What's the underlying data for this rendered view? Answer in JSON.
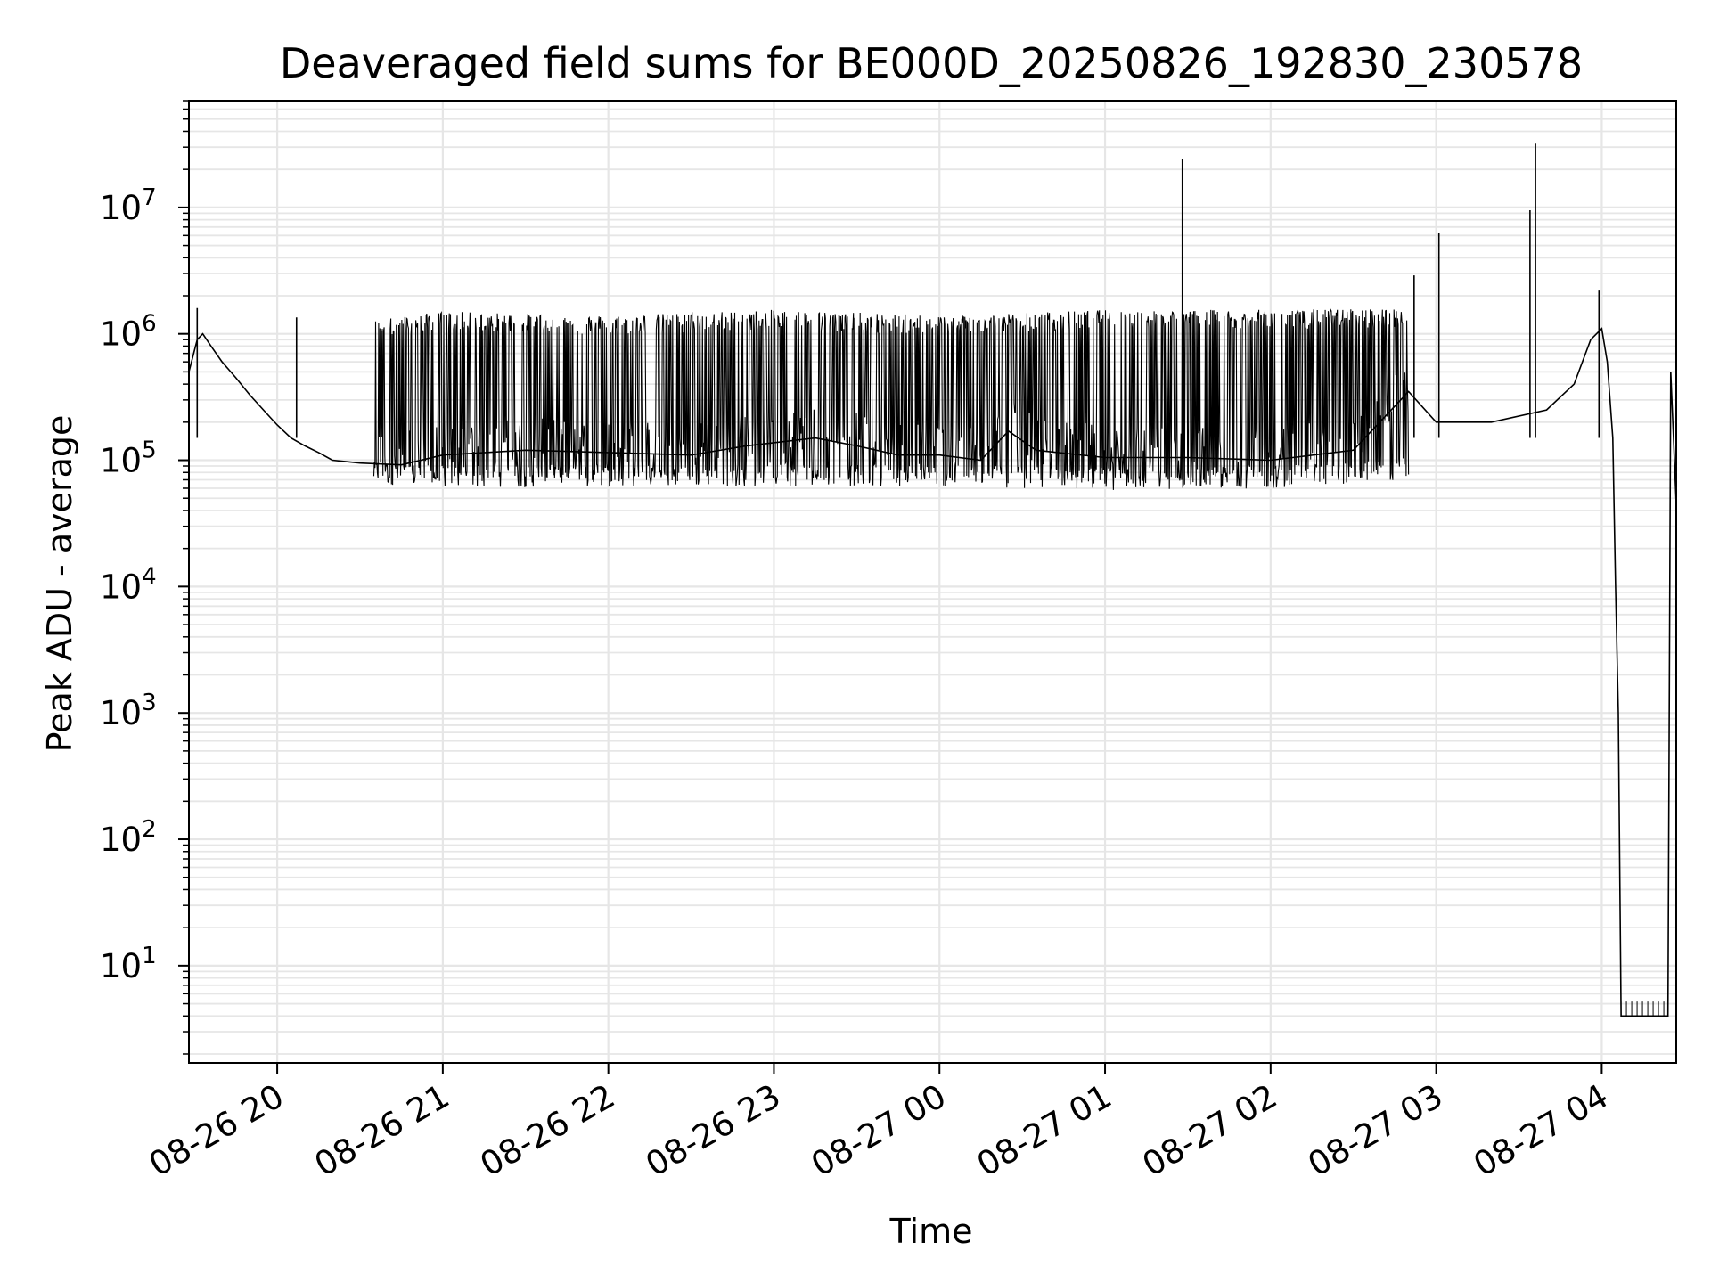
{
  "chart_data": {
    "type": "line",
    "title": "Deaveraged field sums for BE000D_20250826_192830_230578",
    "xlabel": "Time",
    "ylabel": "Peak ADU - average",
    "x_scale": "time",
    "y_scale": "log",
    "xlim": [
      "2025-08-26 19:28",
      "2025-08-27 04:27"
    ],
    "ylim": [
      1.7,
      70000000
    ],
    "grid": true,
    "legend": "none",
    "colors": {
      "line": "#000000",
      "grid": "#e6e6e6",
      "axes": "#000000"
    },
    "x_ticks": [
      {
        "label": "08-26 20",
        "t": "2025-08-26 20:00"
      },
      {
        "label": "08-26 21",
        "t": "2025-08-26 21:00"
      },
      {
        "label": "08-26 22",
        "t": "2025-08-26 22:00"
      },
      {
        "label": "08-26 23",
        "t": "2025-08-26 23:00"
      },
      {
        "label": "08-27 00",
        "t": "2025-08-27 00:00"
      },
      {
        "label": "08-27 01",
        "t": "2025-08-27 01:00"
      },
      {
        "label": "08-27 02",
        "t": "2025-08-27 02:00"
      },
      {
        "label": "08-27 03",
        "t": "2025-08-27 03:00"
      },
      {
        "label": "08-27 04",
        "t": "2025-08-27 04:00"
      }
    ],
    "y_ticks": [
      {
        "base": "10",
        "exp": "1",
        "value": 10
      },
      {
        "base": "10",
        "exp": "2",
        "value": 100
      },
      {
        "base": "10",
        "exp": "3",
        "value": 1000
      },
      {
        "base": "10",
        "exp": "4",
        "value": 10000
      },
      {
        "base": "10",
        "exp": "5",
        "value": 100000
      },
      {
        "base": "10",
        "exp": "6",
        "value": 1000000
      },
      {
        "base": "10",
        "exp": "7",
        "value": 10000000
      }
    ],
    "series": [
      {
        "values": [
          [
            "2025-08-26 19:28",
            500000
          ],
          [
            "2025-08-26 19:31",
            900000
          ],
          [
            "2025-08-26 19:33",
            1000000
          ],
          [
            "2025-08-26 19:36",
            800000
          ],
          [
            "2025-08-26 19:40",
            600000
          ],
          [
            "2025-08-26 19:45",
            450000
          ],
          [
            "2025-08-26 19:50",
            330000
          ],
          [
            "2025-08-26 19:55",
            250000
          ],
          [
            "2025-08-26 20:00",
            190000
          ],
          [
            "2025-08-26 20:05",
            150000
          ],
          [
            "2025-08-26 20:10",
            130000
          ],
          [
            "2025-08-26 20:15",
            115000
          ],
          [
            "2025-08-26 20:20",
            100000
          ],
          [
            "2025-08-26 20:30",
            95000
          ],
          [
            "2025-08-26 20:45",
            92000
          ],
          [
            "2025-08-26 21:00",
            110000
          ],
          [
            "2025-08-26 21:30",
            120000
          ],
          [
            "2025-08-26 22:00",
            115000
          ],
          [
            "2025-08-26 22:30",
            110000
          ],
          [
            "2025-08-26 22:50",
            130000
          ],
          [
            "2025-08-26 23:15",
            150000
          ],
          [
            "2025-08-26 23:30",
            130000
          ],
          [
            "2025-08-26 23:45",
            110000
          ],
          [
            "2025-08-27 00:00",
            110000
          ],
          [
            "2025-08-27 00:15",
            100000
          ],
          [
            "2025-08-27 00:25",
            170000
          ],
          [
            "2025-08-27 00:35",
            120000
          ],
          [
            "2025-08-27 01:00",
            105000
          ],
          [
            "2025-08-27 01:30",
            105000
          ],
          [
            "2025-08-27 02:00",
            100000
          ],
          [
            "2025-08-27 02:30",
            120000
          ],
          [
            "2025-08-27 02:50",
            350000
          ],
          [
            "2025-08-27 03:00",
            200000
          ],
          [
            "2025-08-27 03:20",
            200000
          ],
          [
            "2025-08-27 03:40",
            250000
          ],
          [
            "2025-08-27 03:50",
            400000
          ],
          [
            "2025-08-27 03:56",
            900000
          ],
          [
            "2025-08-27 04:00",
            1100000
          ],
          [
            "2025-08-27 04:02",
            600000
          ],
          [
            "2025-08-27 04:04",
            150000
          ],
          [
            "2025-08-27 04:05",
            10000
          ],
          [
            "2025-08-27 04:06",
            1000
          ],
          [
            "2025-08-27 04:07",
            4
          ],
          [
            "2025-08-27 04:24",
            4
          ],
          [
            "2025-08-27 04:25",
            500000
          ],
          [
            "2025-08-27 04:27",
            45000
          ]
        ],
        "band_upper": [
          [
            "2025-08-26 20:35",
            1300000
          ],
          [
            "2025-08-26 21:00",
            1500000
          ],
          [
            "2025-08-26 22:00",
            1400000
          ],
          [
            "2025-08-26 23:00",
            1550000
          ],
          [
            "2025-08-27 00:00",
            1400000
          ],
          [
            "2025-08-27 01:00",
            1550000
          ],
          [
            "2025-08-27 02:00",
            1550000
          ],
          [
            "2025-08-27 02:50",
            1600000
          ]
        ],
        "band_lower": [
          [
            "2025-08-26 20:35",
            65000
          ],
          [
            "2025-08-26 21:00",
            60000
          ],
          [
            "2025-08-26 22:00",
            62000
          ],
          [
            "2025-08-26 23:00",
            62000
          ],
          [
            "2025-08-27 00:00",
            62000
          ],
          [
            "2025-08-27 01:00",
            58000
          ],
          [
            "2025-08-27 02:00",
            60000
          ],
          [
            "2025-08-27 02:50",
            70000
          ]
        ],
        "spikes": [
          [
            "2025-08-26 19:31",
            1600000
          ],
          [
            "2025-08-26 20:07",
            1350000
          ],
          [
            "2025-08-27 01:28",
            24000000
          ],
          [
            "2025-08-27 02:52",
            2900000
          ],
          [
            "2025-08-27 03:01",
            6300000
          ],
          [
            "2025-08-27 03:34",
            9500000
          ],
          [
            "2025-08-27 03:36",
            32000000
          ],
          [
            "2025-08-27 03:59",
            2200000
          ]
        ]
      }
    ]
  }
}
